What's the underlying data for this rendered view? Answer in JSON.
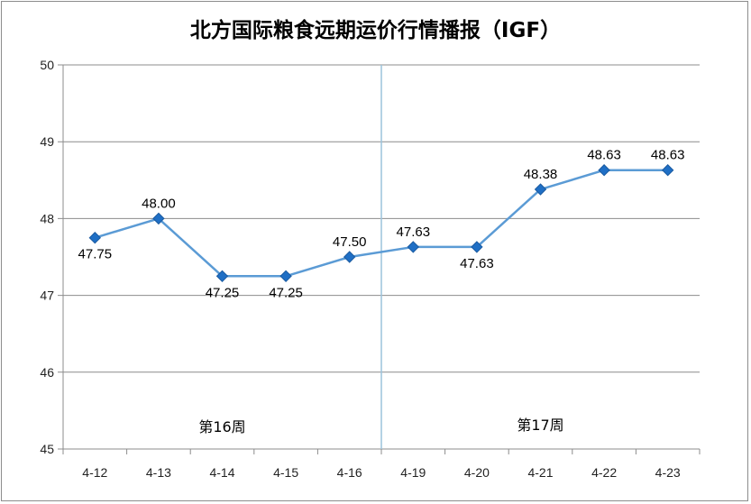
{
  "chart_data": {
    "type": "line",
    "title": "北方国际粮食远期运价行情播报（IGF）",
    "categories": [
      "4-12",
      "4-13",
      "4-14",
      "4-15",
      "4-16",
      "4-19",
      "4-20",
      "4-21",
      "4-22",
      "4-23"
    ],
    "series": [
      {
        "values": [
          47.75,
          48.0,
          47.25,
          47.25,
          47.5,
          47.63,
          47.63,
          48.38,
          48.63,
          48.63
        ],
        "labels": [
          "47.75",
          "48.00",
          "47.25",
          "47.25",
          "47.50",
          "47.63",
          "47.63",
          "48.38",
          "48.63",
          "48.63"
        ],
        "color": "#5b9bd5",
        "marker_color": "#1f6fc5"
      }
    ],
    "ylim": [
      45,
      50
    ],
    "yticks": [
      "45",
      "46",
      "47",
      "48",
      "49",
      "50"
    ],
    "grid": true,
    "annotations": [
      {
        "text": "第16周"
      },
      {
        "text": "第17周"
      }
    ],
    "divider_color": "#9cc3dc"
  }
}
